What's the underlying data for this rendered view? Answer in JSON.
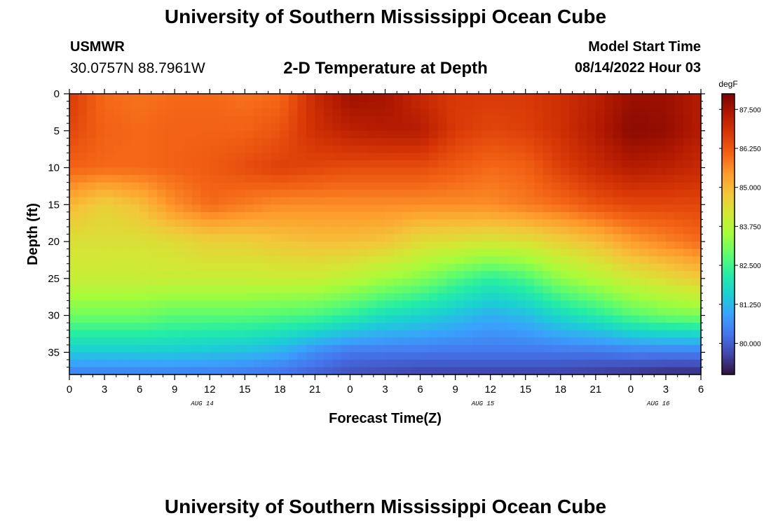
{
  "header": {
    "title": "University of Southern Mississippi Ocean Cube",
    "station_id": "USMWR",
    "station_coords": "30.0757N  88.7961W",
    "chart_title": "2-D Temperature at Depth",
    "model_start_label": "Model Start Time",
    "model_start_value": "08/14/2022 Hour 03"
  },
  "footer": {
    "title": "University of Southern Mississippi Ocean Cube"
  },
  "chart_data": {
    "type": "heatmap",
    "title": "2-D Temperature at Depth",
    "xlabel": "Forecast Time(Z)",
    "ylabel": "Depth (ft)",
    "x_ticks": [
      "0",
      "3",
      "6",
      "9",
      "12",
      "15",
      "18",
      "21",
      "0",
      "3",
      "6",
      "9",
      "12",
      "15",
      "18",
      "21",
      "0",
      "3",
      "6"
    ],
    "x_range_hours": [
      0,
      54
    ],
    "date_labels": [
      {
        "label": "AUG 14",
        "hour": 11
      },
      {
        "label": "AUG 15",
        "hour": 35
      },
      {
        "label": "AUG 16",
        "hour": 50
      }
    ],
    "y_ticks": [
      0,
      5,
      10,
      15,
      20,
      25,
      30,
      35
    ],
    "ylim": [
      38,
      0
    ],
    "colorbar": {
      "unit": "degF",
      "min": 79.0,
      "max": 88.0,
      "tick_labels": [
        "87.500",
        "86.250",
        "85.000",
        "83.750",
        "82.500",
        "81.250",
        "80.000"
      ],
      "tick_values": [
        87.5,
        86.25,
        85.0,
        83.75,
        82.5,
        81.25,
        80.0
      ],
      "colormap": [
        "#30123b",
        "#4145ab",
        "#4675ed",
        "#39a2fc",
        "#1bcfd4",
        "#24eca6",
        "#61fc6c",
        "#a4fc3b",
        "#d1e834",
        "#f3c63a",
        "#fe9b2d",
        "#f36315",
        "#d93806",
        "#b11901",
        "#7a0402"
      ]
    },
    "grid_hours": [
      0,
      3,
      6,
      9,
      12,
      15,
      18,
      21,
      24,
      27,
      30,
      33,
      36,
      39,
      42,
      45,
      48,
      51,
      54
    ],
    "grid_depths": [
      0,
      5,
      10,
      15,
      20,
      25,
      30,
      35,
      38
    ],
    "values_degF": [
      [
        86.7,
        86.0,
        85.9,
        86.0,
        86.0,
        85.9,
        86.0,
        87.0,
        87.6,
        87.5,
        87.0,
        86.7,
        86.7,
        86.7,
        86.9,
        87.2,
        87.6,
        87.6,
        87.3
      ],
      [
        86.5,
        86.1,
        86.0,
        86.1,
        86.1,
        86.1,
        86.3,
        86.9,
        87.2,
        87.3,
        87.3,
        86.7,
        86.5,
        86.6,
        86.9,
        87.3,
        87.8,
        87.7,
        87.3
      ],
      [
        86.1,
        86.0,
        86.0,
        86.1,
        86.2,
        86.4,
        86.6,
        86.5,
        86.4,
        86.4,
        86.4,
        86.2,
        86.0,
        86.1,
        86.6,
        87.0,
        87.3,
        87.2,
        87.0
      ],
      [
        85.0,
        84.6,
        84.9,
        85.6,
        86.0,
        85.8,
        85.6,
        85.6,
        85.6,
        85.6,
        85.6,
        85.6,
        85.6,
        85.8,
        86.0,
        86.3,
        86.5,
        86.5,
        86.5
      ],
      [
        84.3,
        84.3,
        84.3,
        84.4,
        84.6,
        84.6,
        84.8,
        84.9,
        84.9,
        84.8,
        84.4,
        84.3,
        84.2,
        84.3,
        84.6,
        84.9,
        85.4,
        85.7,
        86.0
      ],
      [
        84.0,
        84.0,
        84.0,
        84.0,
        84.0,
        84.0,
        84.0,
        84.0,
        83.8,
        83.5,
        83.2,
        82.7,
        82.3,
        82.6,
        83.3,
        83.7,
        84.1,
        84.4,
        84.7
      ],
      [
        83.0,
        83.0,
        83.0,
        82.8,
        82.8,
        82.8,
        82.7,
        82.6,
        82.3,
        81.9,
        81.7,
        81.4,
        81.1,
        81.3,
        81.8,
        82.2,
        82.7,
        83.0,
        83.1
      ],
      [
        81.5,
        81.5,
        81.5,
        81.5,
        81.4,
        81.3,
        81.1,
        80.6,
        80.3,
        80.3,
        80.3,
        80.3,
        80.3,
        80.3,
        80.3,
        80.3,
        80.4,
        80.4,
        80.4
      ],
      [
        80.4,
        80.4,
        80.4,
        80.4,
        80.4,
        80.3,
        80.2,
        80.0,
        79.8,
        79.7,
        79.6,
        79.6,
        79.6,
        79.6,
        79.6,
        79.5,
        79.4,
        79.3,
        79.3
      ]
    ]
  }
}
